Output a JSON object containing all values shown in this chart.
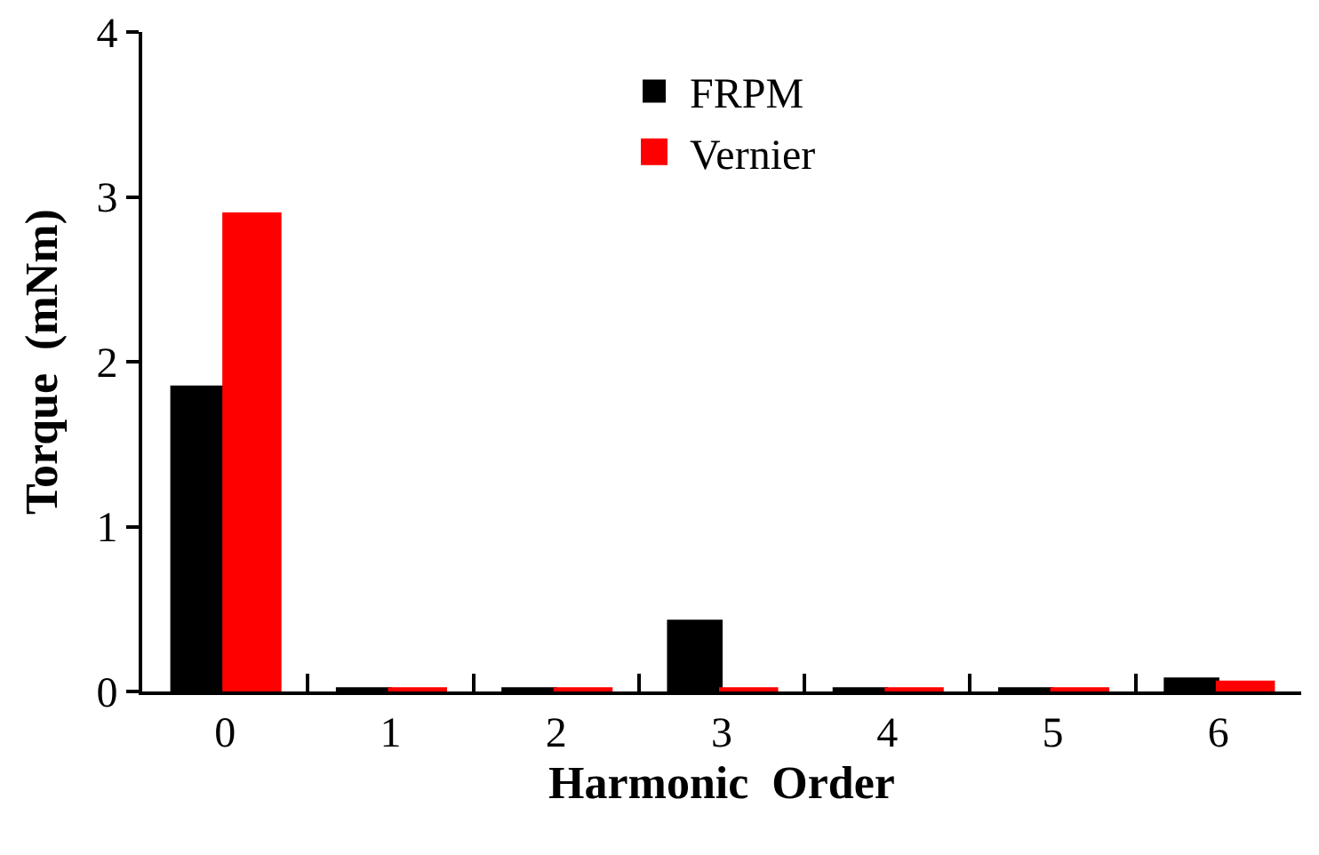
{
  "chart_data": {
    "type": "bar",
    "xlabel": "Harmonic  Order",
    "ylabel": "Torque  (mNm)",
    "categories": [
      "0",
      "1",
      "2",
      "3",
      "4",
      "5",
      "6"
    ],
    "series": [
      {
        "name": "FRPM",
        "color": "#000000",
        "values": [
          1.85,
          0.02,
          0.02,
          0.43,
          0.02,
          0.02,
          0.08
        ]
      },
      {
        "name": "Vernier",
        "color": "#ff0000",
        "values": [
          2.89,
          0.01,
          0.01,
          0.01,
          0.01,
          0.01,
          0.05
        ]
      }
    ],
    "ylim": [
      0,
      4
    ],
    "yticks": [
      0,
      1,
      2,
      3,
      4
    ],
    "grid": false,
    "legend": "top"
  }
}
